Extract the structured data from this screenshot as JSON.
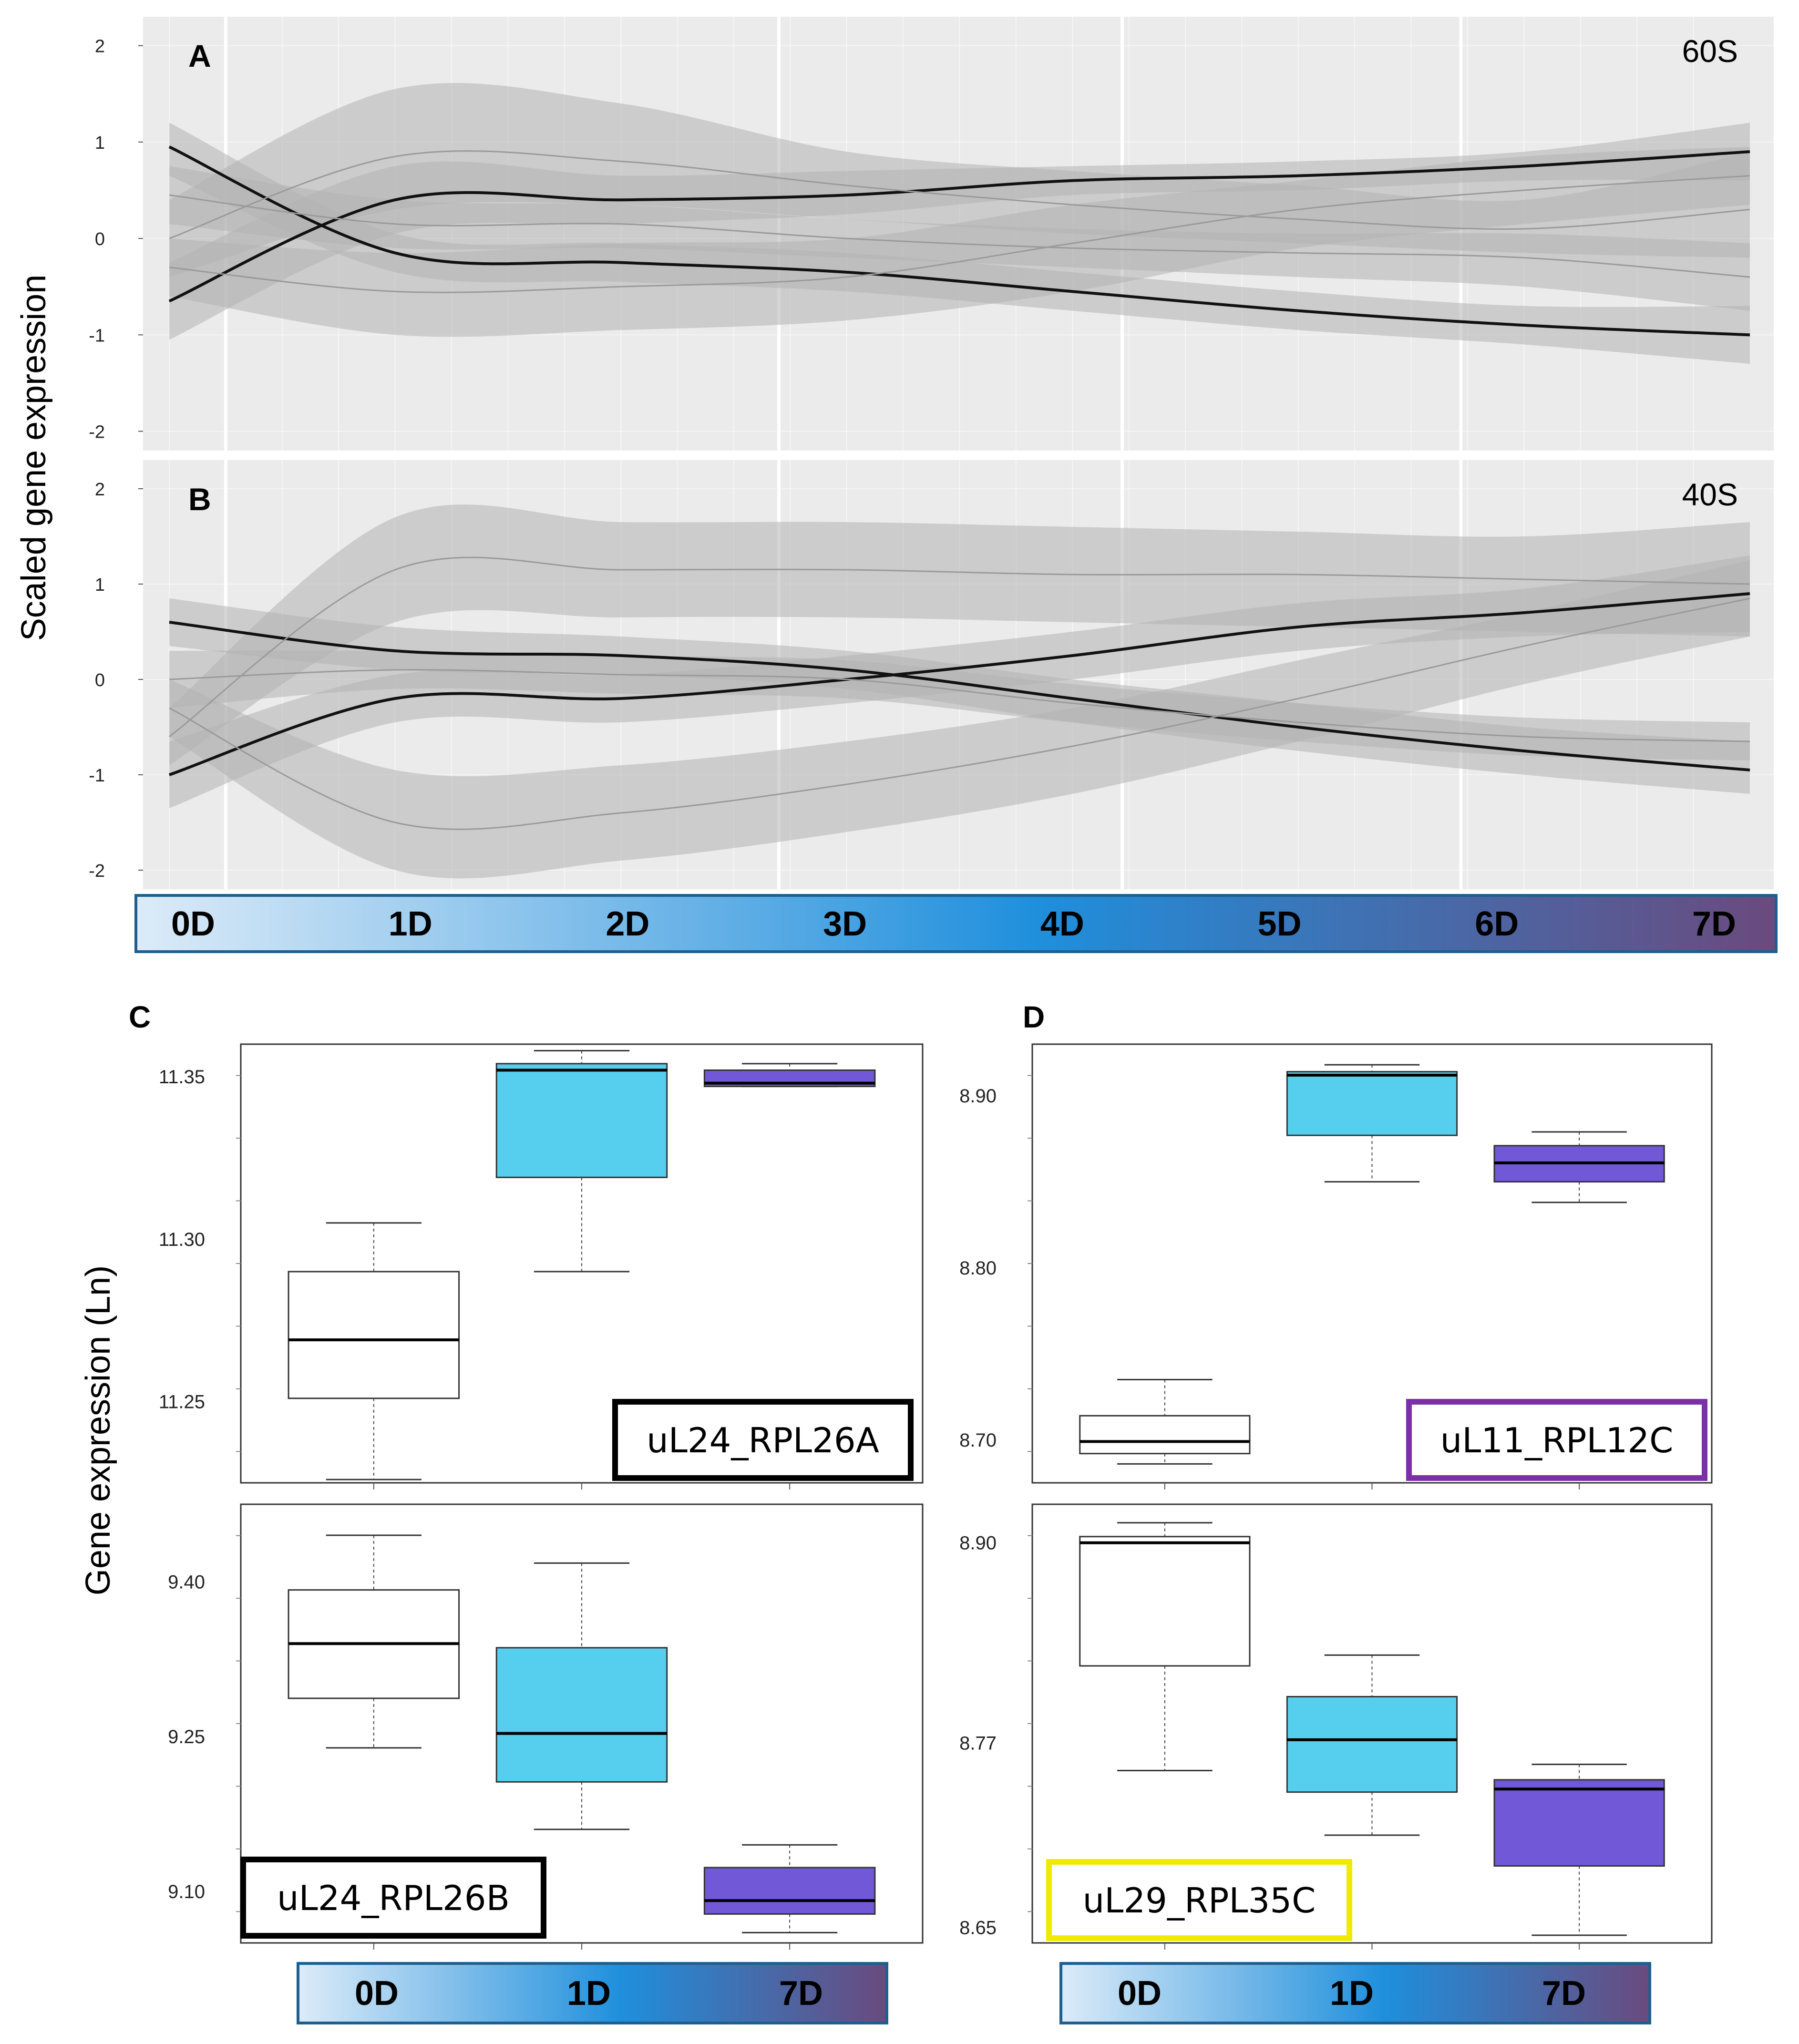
{
  "y_axis_labels": {
    "top": "Scaled gene expression",
    "bottom": "Gene expression (Ln)"
  },
  "colors": {
    "panel_bg": "#ebebeb",
    "gridline": "#ffffff",
    "ribbon": "#b3b3b3",
    "mean_line_dark": "#111111",
    "mean_line_light": "#9a9a9a",
    "box_0D": "#ffffff",
    "box_1D": "#56cfee",
    "box_7D": "#7058d6",
    "timebar_start": "#dcebf8",
    "timebar_mid": "#1f8fdc",
    "timebar_end": "#6a4a7e",
    "timebar_border": "#1e5f8e",
    "label_uL24_RPL26A": "#000000",
    "label_uL11_RPL12C": "#7b2fa8",
    "label_uL24_RPL26B": "#000000",
    "label_uL29_RPL35C": "#f0ea00"
  },
  "timebar_top": [
    "0D",
    "1D",
    "2D",
    "3D",
    "4D",
    "5D",
    "6D",
    "7D"
  ],
  "timebar_bottom": [
    "0D",
    "1D",
    "7D"
  ],
  "chart_data": [
    {
      "panel": "A",
      "type": "line",
      "title": "60S",
      "x": [
        0,
        1,
        2,
        3,
        4,
        5,
        6,
        7
      ],
      "xtick_labels": [
        "0D",
        "1D",
        "2D",
        "3D",
        "4D",
        "5D",
        "6D",
        "7D"
      ],
      "ylabel": "Scaled gene expression",
      "ylim": [
        -2.2,
        2.3
      ],
      "yticks": [
        -2,
        -1,
        0,
        1,
        2
      ],
      "grid": true,
      "series": [
        {
          "name": "dark decreasing",
          "style": "dark",
          "mean": [
            0.95,
            -0.15,
            -0.25,
            -0.35,
            -0.55,
            -0.75,
            -0.9,
            -1.0
          ],
          "lower": [
            0.65,
            -0.35,
            -0.45,
            -0.55,
            -0.75,
            -0.95,
            -1.1,
            -1.3
          ],
          "upper": [
            1.2,
            0.05,
            -0.05,
            -0.15,
            -0.35,
            -0.55,
            -0.7,
            -0.7
          ]
        },
        {
          "name": "dark increasing",
          "style": "dark",
          "mean": [
            -0.65,
            0.4,
            0.4,
            0.45,
            0.6,
            0.65,
            0.75,
            0.9
          ],
          "lower": [
            -1.05,
            0.05,
            0.15,
            0.25,
            0.45,
            0.5,
            0.6,
            0.6
          ],
          "upper": [
            -0.25,
            0.75,
            0.65,
            0.7,
            0.75,
            0.8,
            0.9,
            1.2
          ]
        },
        {
          "name": "light high",
          "style": "light",
          "mean": [
            0.0,
            0.85,
            0.8,
            0.55,
            0.35,
            0.2,
            0.1,
            0.3
          ],
          "lower": [
            -0.4,
            0.3,
            0.35,
            0.2,
            0.05,
            -0.05,
            -0.15,
            -0.2
          ],
          "upper": [
            0.4,
            1.55,
            1.4,
            0.9,
            0.7,
            0.55,
            0.4,
            0.9
          ]
        },
        {
          "name": "light low",
          "style": "light",
          "mean": [
            -0.3,
            -0.55,
            -0.5,
            -0.4,
            -0.05,
            0.3,
            0.5,
            0.65
          ],
          "lower": [
            -0.6,
            -1.0,
            -0.95,
            -0.85,
            -0.55,
            -0.1,
            0.15,
            0.35
          ],
          "upper": [
            0.0,
            -0.15,
            -0.05,
            0.0,
            0.35,
            0.6,
            0.85,
            0.95
          ]
        },
        {
          "name": "light mid",
          "style": "light",
          "mean": [
            0.45,
            0.15,
            0.15,
            0.0,
            -0.1,
            -0.15,
            -0.2,
            -0.4
          ],
          "lower": [
            0.15,
            -0.1,
            -0.1,
            -0.2,
            -0.3,
            -0.4,
            -0.5,
            -0.75
          ],
          "upper": [
            0.75,
            0.4,
            0.35,
            0.2,
            0.1,
            0.05,
            0.05,
            -0.05
          ]
        }
      ]
    },
    {
      "panel": "B",
      "type": "line",
      "title": "40S",
      "x": [
        0,
        1,
        2,
        3,
        4,
        5,
        6,
        7
      ],
      "xtick_labels": [
        "0D",
        "1D",
        "2D",
        "3D",
        "4D",
        "5D",
        "6D",
        "7D"
      ],
      "ylabel": "Scaled gene expression",
      "ylim": [
        -2.2,
        2.3
      ],
      "yticks": [
        -2,
        -1,
        0,
        1,
        2
      ],
      "grid": true,
      "series": [
        {
          "name": "dark decreasing",
          "style": "dark",
          "mean": [
            0.6,
            0.3,
            0.25,
            0.1,
            -0.2,
            -0.5,
            -0.75,
            -0.95
          ],
          "lower": [
            0.35,
            0.1,
            0.05,
            -0.1,
            -0.45,
            -0.75,
            -1.0,
            -1.2
          ],
          "upper": [
            0.85,
            0.55,
            0.45,
            0.3,
            0.0,
            -0.25,
            -0.5,
            -0.65
          ]
        },
        {
          "name": "dark increasing",
          "style": "dark",
          "mean": [
            -1.0,
            -0.2,
            -0.2,
            0.0,
            0.25,
            0.55,
            0.7,
            0.9
          ],
          "lower": [
            -1.35,
            -0.45,
            -0.45,
            -0.25,
            0.0,
            0.3,
            0.45,
            0.5
          ],
          "upper": [
            -0.65,
            0.05,
            0.05,
            0.25,
            0.5,
            0.8,
            0.95,
            1.3
          ]
        },
        {
          "name": "light high",
          "style": "light",
          "mean": [
            -0.6,
            1.15,
            1.15,
            1.15,
            1.1,
            1.1,
            1.05,
            1.0
          ],
          "lower": [
            -0.9,
            0.6,
            0.65,
            0.65,
            0.6,
            0.55,
            0.5,
            0.45
          ],
          "upper": [
            -0.3,
            1.7,
            1.65,
            1.65,
            1.6,
            1.55,
            1.5,
            1.65
          ]
        },
        {
          "name": "light low",
          "style": "light",
          "mean": [
            -0.3,
            -1.5,
            -1.4,
            -1.1,
            -0.7,
            -0.2,
            0.35,
            0.85
          ],
          "lower": [
            -0.6,
            -2.0,
            -1.9,
            -1.6,
            -1.2,
            -0.65,
            -0.05,
            0.45
          ],
          "upper": [
            0.0,
            -0.95,
            -0.9,
            -0.65,
            -0.3,
            0.2,
            0.7,
            1.25
          ]
        },
        {
          "name": "light mid",
          "style": "light",
          "mean": [
            0.0,
            0.1,
            0.05,
            0.0,
            -0.25,
            -0.45,
            -0.6,
            -0.65
          ],
          "lower": [
            -0.3,
            -0.1,
            -0.15,
            -0.2,
            -0.45,
            -0.65,
            -0.8,
            -0.85
          ],
          "upper": [
            0.3,
            0.3,
            0.25,
            0.2,
            -0.05,
            -0.25,
            -0.4,
            -0.45
          ]
        }
      ]
    },
    {
      "panel": "C",
      "type": "box",
      "gene": "uL24_RPL26A",
      "ylabel": "Gene expression (Ln)",
      "categories": [
        "0D",
        "1D",
        "7D"
      ],
      "ylim": [
        11.225,
        11.36
      ],
      "yticks": [
        11.25,
        11.3,
        11.35
      ],
      "ytick_labels": [
        "11.25",
        "11.30",
        "11.35"
      ],
      "boxes": [
        {
          "category": "0D",
          "whisker_low": 11.226,
          "q1": 11.251,
          "median": 11.269,
          "q3": 11.29,
          "whisker_high": 11.305
        },
        {
          "category": "1D",
          "whisker_low": 11.29,
          "q1": 11.319,
          "median": 11.352,
          "q3": 11.354,
          "whisker_high": 11.358
        },
        {
          "category": "7D",
          "whisker_low": 11.347,
          "q1": 11.347,
          "median": 11.348,
          "q3": 11.352,
          "whisker_high": 11.354
        }
      ]
    },
    {
      "panel": "D",
      "type": "box",
      "gene": "uL11_RPL12C",
      "ylabel": "Gene expression (Ln)",
      "categories": [
        "0D",
        "1D",
        "7D"
      ],
      "ylim": [
        8.675,
        8.93
      ],
      "yticks": [
        8.7,
        8.8,
        8.9
      ],
      "ytick_labels": [
        "8.70",
        "8.80",
        "8.90"
      ],
      "boxes": [
        {
          "category": "0D",
          "whisker_low": 8.686,
          "q1": 8.692,
          "median": 8.699,
          "q3": 8.714,
          "whisker_high": 8.735
        },
        {
          "category": "1D",
          "whisker_low": 8.85,
          "q1": 8.877,
          "median": 8.912,
          "q3": 8.914,
          "whisker_high": 8.918
        },
        {
          "category": "7D",
          "whisker_low": 8.838,
          "q1": 8.85,
          "median": 8.861,
          "q3": 8.871,
          "whisker_high": 8.879
        }
      ]
    },
    {
      "panel": "C",
      "type": "box",
      "gene": "uL24_RPL26B",
      "ylabel": "Gene expression (Ln)",
      "categories": [
        "0D",
        "1D",
        "7D"
      ],
      "ylim": [
        9.05,
        9.475
      ],
      "yticks": [
        9.1,
        9.25,
        9.4
      ],
      "ytick_labels": [
        "9.10",
        "9.25",
        "9.40"
      ],
      "boxes": [
        {
          "category": "0D",
          "whisker_low": 9.239,
          "q1": 9.287,
          "median": 9.34,
          "q3": 9.392,
          "whisker_high": 9.445
        },
        {
          "category": "1D",
          "whisker_low": 9.16,
          "q1": 9.206,
          "median": 9.253,
          "q3": 9.336,
          "whisker_high": 9.418
        },
        {
          "category": "7D",
          "whisker_low": 9.06,
          "q1": 9.078,
          "median": 9.091,
          "q3": 9.123,
          "whisker_high": 9.145
        }
      ]
    },
    {
      "panel": "D",
      "type": "box",
      "gene": "uL29_RPL35C",
      "ylabel": "Gene expression (Ln)",
      "categories": [
        "0D",
        "1D",
        "7D"
      ],
      "ylim": [
        8.64,
        8.925
      ],
      "yticks": [
        8.65,
        8.77,
        8.9
      ],
      "ytick_labels": [
        "8.65",
        "8.77",
        "8.90"
      ],
      "boxes": [
        {
          "category": "0D",
          "whisker_low": 8.752,
          "q1": 8.82,
          "median": 8.9,
          "q3": 8.904,
          "whisker_high": 8.913
        },
        {
          "category": "1D",
          "whisker_low": 8.71,
          "q1": 8.738,
          "median": 8.772,
          "q3": 8.8,
          "whisker_high": 8.827
        },
        {
          "category": "7D",
          "whisker_low": 8.645,
          "q1": 8.69,
          "median": 8.74,
          "q3": 8.746,
          "whisker_high": 8.756
        }
      ]
    }
  ]
}
